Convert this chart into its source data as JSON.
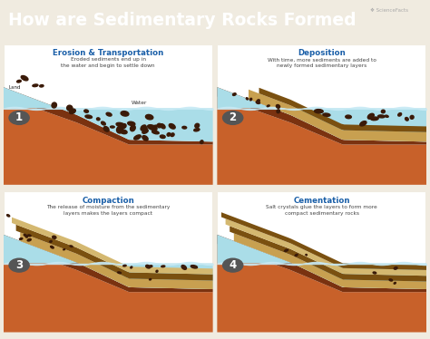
{
  "title": "How are Sedimentary Rocks Formed",
  "title_bg": "#3d1505",
  "title_color": "#ffffff",
  "bg_color": "#f0ebe0",
  "subtitle_color": "#1a5fa8",
  "body_color": "#444444",
  "panels": [
    {
      "number": "1",
      "title": "Erosion & Transportation",
      "body": "Eroded sediments end up in\nthe water and begin to settle down",
      "land_label": "Land",
      "water_label": "Water"
    },
    {
      "number": "2",
      "title": "Deposition",
      "body": "With time, more sediments are added to\nnewly formed sedimentary layers",
      "land_label": "",
      "water_label": ""
    },
    {
      "number": "3",
      "title": "Compaction",
      "body": "The release of moisture from the sedimentary\nlayers makes the layers compact",
      "land_label": "",
      "water_label": ""
    },
    {
      "number": "4",
      "title": "Cementation",
      "body": "Salt crystals glue the layers to form more\ncompact sedimentary rocks",
      "land_label": "",
      "water_label": ""
    }
  ],
  "colors": {
    "land_orange": "#c8612a",
    "land_brown_dark": "#7a3210",
    "land_top_edge": "#a04820",
    "water_light": "#aadde8",
    "water_mid": "#88ccd8",
    "water_wave_top": "#c8eaf5",
    "sed_tan": "#c8a050",
    "sed_dark_brown": "#7a5010",
    "sed_medium": "#8B6020",
    "sed_light_tan": "#d4b870",
    "rock_color": "#3a1a08",
    "badge_bg": "#555555",
    "panel_border": "#cccccc",
    "sciencefacts_color": "#888888"
  }
}
